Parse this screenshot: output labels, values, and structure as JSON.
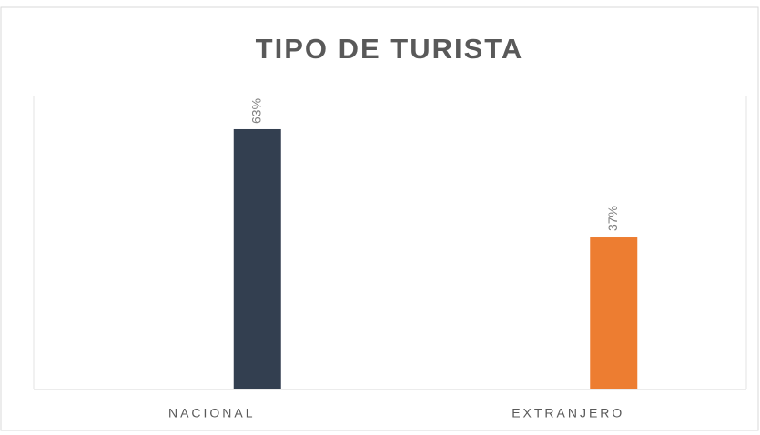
{
  "chart_data": {
    "type": "bar",
    "title": "TIPO DE TURISTA",
    "categories": [
      "NACIONAL",
      "EXTRANJERO"
    ],
    "values": [
      63,
      37
    ],
    "value_labels": [
      "63%",
      "37%"
    ],
    "colors": [
      "#333f50",
      "#ed7d31"
    ]
  }
}
